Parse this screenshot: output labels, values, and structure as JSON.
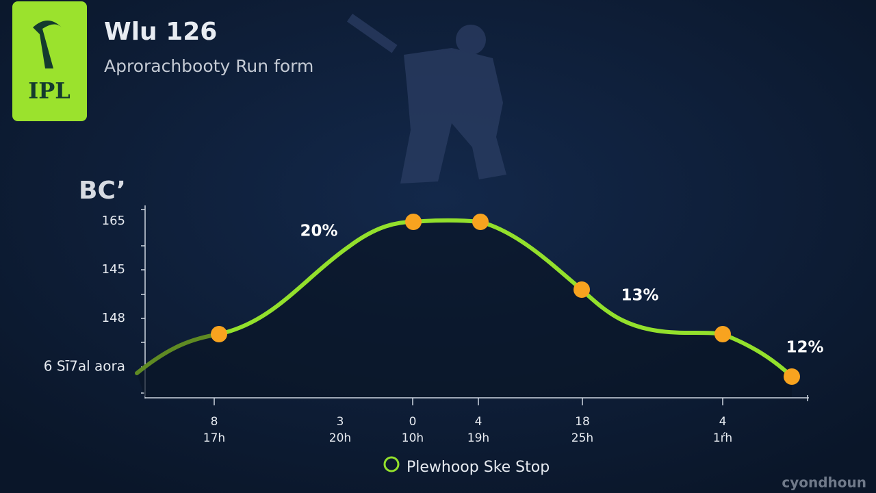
{
  "logo": {
    "text": "IPL"
  },
  "header": {
    "title": "Wlu 126",
    "subtitle": "Aprorachbooty Run form"
  },
  "axis_title": "BC’",
  "y_labels": [
    "165",
    "145",
    "148",
    "6 Sī7al aora"
  ],
  "x_labels": [
    {
      "top": "8",
      "bottom": "17h"
    },
    {
      "top": "3",
      "bottom": "20h"
    },
    {
      "top": "0",
      "bottom": "10h"
    },
    {
      "top": "4",
      "bottom": "19h"
    },
    {
      "top": "18",
      "bottom": "25h"
    },
    {
      "top": "4",
      "bottom": "1ŕh"
    }
  ],
  "annotations": [
    "20%",
    "13%",
    "12%"
  ],
  "footer": {
    "legend": "Plewhoop Ske Stop"
  },
  "watermark": "cyondhoun"
}
